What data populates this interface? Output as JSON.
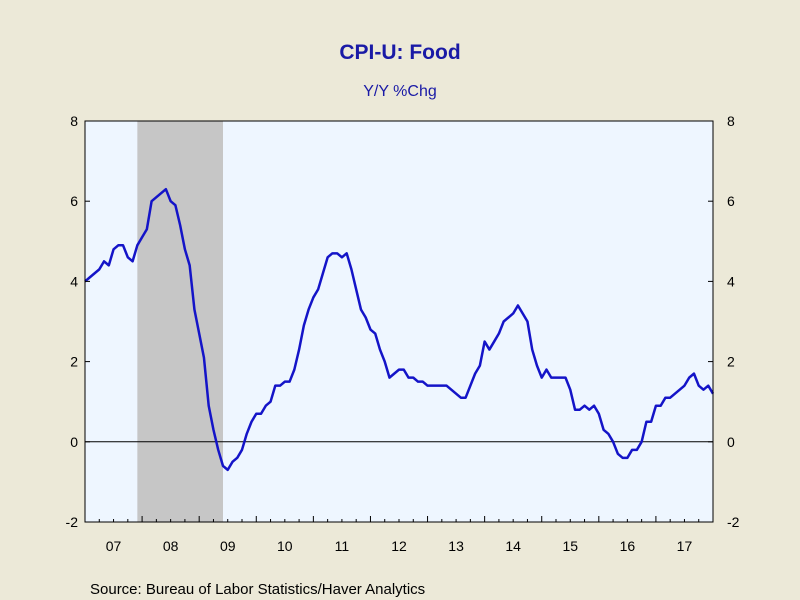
{
  "chart_data": {
    "type": "line",
    "title": "CPI-U: Food",
    "subtitle": "Y/Y %Chg",
    "source": "Source:  Bureau of Labor Statistics/Haver Analytics",
    "ylim": [
      -2,
      8
    ],
    "yticks": [
      "8",
      "6",
      "4",
      "2",
      "0",
      "-2"
    ],
    "ytick_values": [
      8,
      6,
      4,
      2,
      0,
      -2
    ],
    "xlim": [
      2007.0,
      2018.0
    ],
    "xtick_labels": [
      "07",
      "08",
      "09",
      "10",
      "11",
      "12",
      "13",
      "14",
      "15",
      "16",
      "17"
    ],
    "xtick_years": [
      2007,
      2008,
      2009,
      2010,
      2011,
      2012,
      2013,
      2014,
      2015,
      2016,
      2017
    ],
    "recession": {
      "start": 2007.917,
      "end": 2009.417
    },
    "grid": false,
    "zero_line": true,
    "colors": {
      "line": "#1414c8",
      "plot_bg": "#eef6ff",
      "recession": "#c6c6c6",
      "page_bg": "#ece9d8",
      "title": "#1a1aa6"
    },
    "series": [
      {
        "start": "2007-01",
        "frequency": "monthly",
        "values": [
          4.0,
          4.1,
          4.2,
          4.3,
          4.5,
          4.4,
          4.8,
          4.9,
          4.9,
          4.6,
          4.5,
          4.9,
          5.1,
          5.3,
          6.0,
          6.1,
          6.2,
          6.3,
          6.0,
          5.9,
          5.4,
          4.8,
          4.4,
          3.3,
          2.7,
          2.1,
          0.9,
          0.3,
          -0.2,
          -0.6,
          -0.7,
          -0.5,
          -0.4,
          -0.2,
          0.2,
          0.5,
          0.7,
          0.7,
          0.9,
          1.0,
          1.4,
          1.4,
          1.5,
          1.5,
          1.8,
          2.3,
          2.9,
          3.3,
          3.6,
          3.8,
          4.2,
          4.6,
          4.7,
          4.7,
          4.6,
          4.7,
          4.3,
          3.8,
          3.3,
          3.1,
          2.8,
          2.7,
          2.3,
          2.0,
          1.6,
          1.7,
          1.8,
          1.8,
          1.6,
          1.6,
          1.5,
          1.5,
          1.4,
          1.4,
          1.4,
          1.4,
          1.4,
          1.3,
          1.2,
          1.1,
          1.1,
          1.4,
          1.7,
          1.9,
          2.5,
          2.3,
          2.5,
          2.7,
          3.0,
          3.1,
          3.2,
          3.4,
          3.2,
          3.0,
          2.3,
          1.9,
          1.6,
          1.8,
          1.6,
          1.6,
          1.6,
          1.6,
          1.3,
          0.8,
          0.8,
          0.9,
          0.8,
          0.9,
          0.7,
          0.3,
          0.2,
          0.0,
          -0.3,
          -0.4,
          -0.4,
          -0.2,
          -0.2,
          0.0,
          0.5,
          0.5,
          0.9,
          0.9,
          1.1,
          1.1,
          1.2,
          1.3,
          1.4,
          1.6,
          1.7,
          1.4,
          1.3,
          1.4,
          1.2
        ]
      }
    ]
  }
}
